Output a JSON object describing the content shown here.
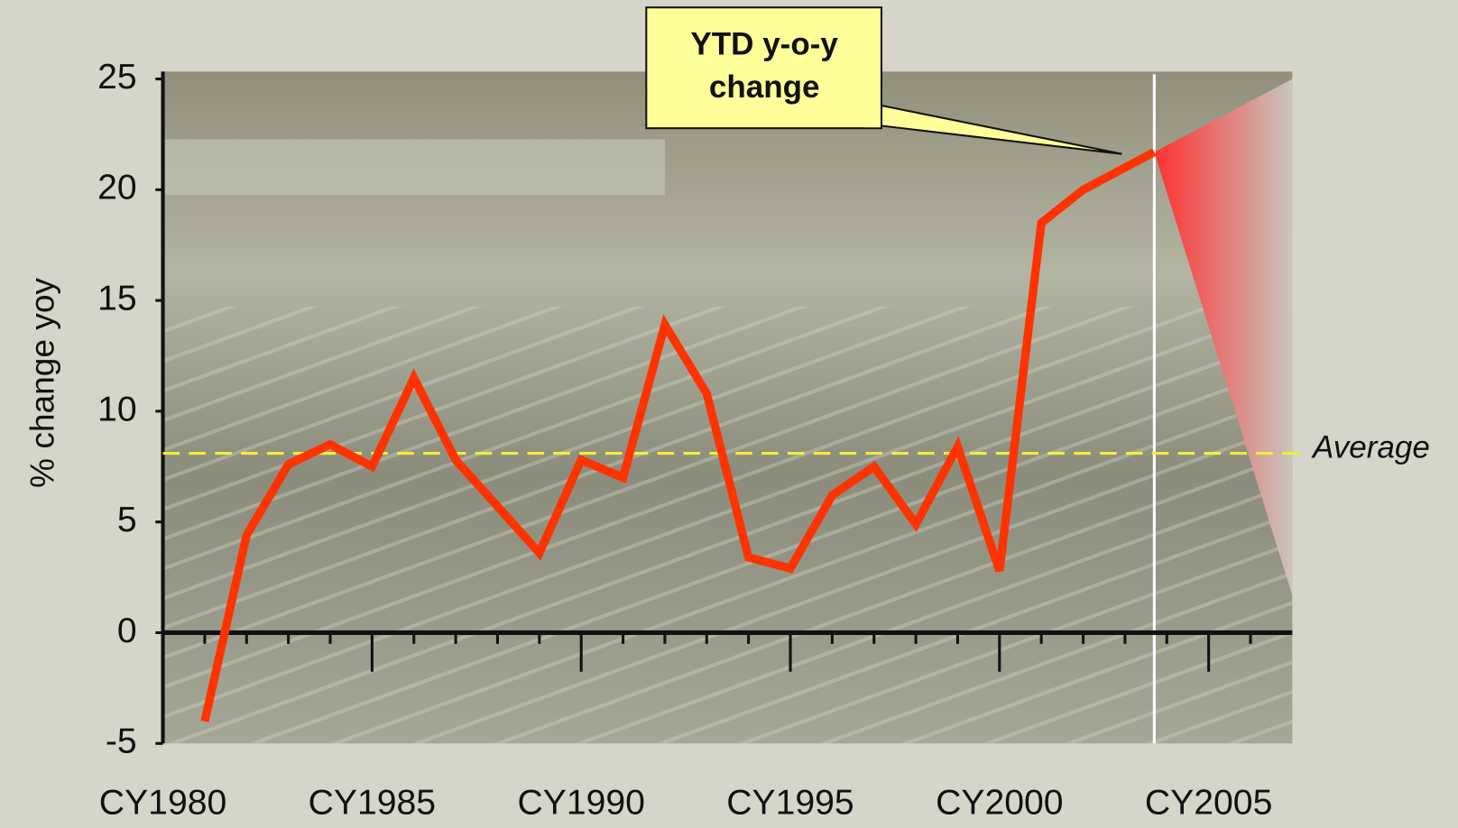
{
  "chart_data": {
    "type": "line",
    "y_label": "% change yoy",
    "callout": "YTD y-o-y change",
    "average": {
      "label": "Average",
      "value": 8.1,
      "color": "#f2ee3a"
    },
    "x": [
      1981,
      1982,
      1983,
      1984,
      1985,
      1986,
      1987,
      1988,
      1989,
      1990,
      1991,
      1992,
      1993,
      1994,
      1995,
      1996,
      1997,
      1998,
      1999,
      2000,
      2001,
      2002,
      2003,
      2003.7
    ],
    "series": [
      {
        "name": "% change yoy",
        "color": "#ff3300",
        "values": [
          -4,
          4.4,
          7.6,
          8.5,
          7.5,
          11.5,
          7.8,
          5.7,
          3.6,
          7.8,
          7.0,
          13.9,
          10.8,
          3.4,
          2.9,
          6.2,
          7.5,
          4.9,
          8.4,
          2.8,
          18.5,
          20.0,
          21.0,
          21.7
        ]
      }
    ],
    "xlim": [
      1980,
      2007
    ],
    "xticks": [
      {
        "value": 1980,
        "label": "CY1980"
      },
      {
        "value": 1985,
        "label": "CY1985"
      },
      {
        "value": 1990,
        "label": "CY1990"
      },
      {
        "value": 1995,
        "label": "CY1995"
      },
      {
        "value": 2000,
        "label": "CY2000"
      },
      {
        "value": 2005,
        "label": "CY2005"
      }
    ],
    "x_minor_ticks": [
      1981,
      1982,
      1983,
      1984,
      1986,
      1987,
      1988,
      1989,
      1991,
      1992,
      1993,
      1994,
      1996,
      1997,
      1998,
      1999,
      2001,
      2002,
      2003,
      2004,
      2006
    ],
    "ylim": [
      -5,
      25
    ],
    "yticks": [
      -5,
      0,
      5,
      10,
      15,
      20,
      25
    ]
  }
}
